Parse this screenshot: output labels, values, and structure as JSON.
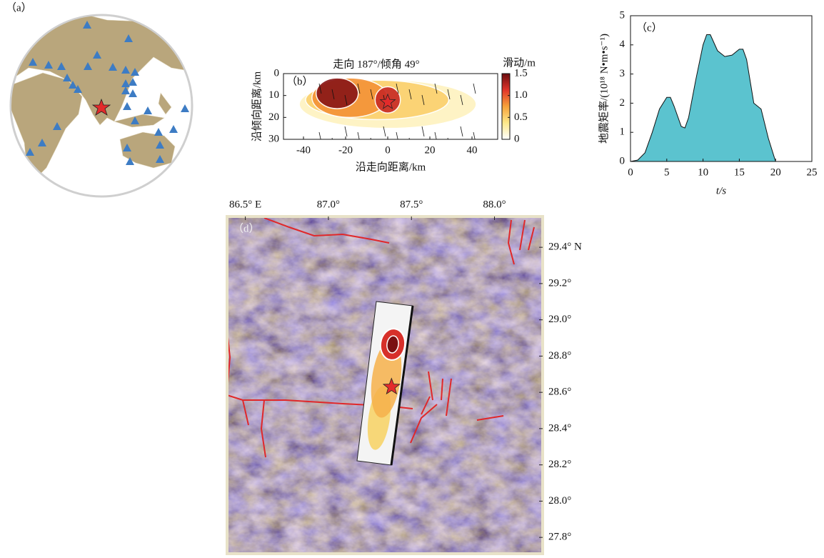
{
  "chart_data": [
    {
      "type": "globe",
      "label": "（a）"
    },
    {
      "type": "slip",
      "label": "（b）",
      "title": "走向 187°/倾角 49°",
      "xlabel": "沿走向距离/km",
      "ylabel": "沿倾向距离/km",
      "xlim": [
        -49.5,
        52.2
      ],
      "ylim": [
        30,
        0
      ],
      "xticks": [
        -40,
        -20,
        0,
        20,
        40
      ],
      "yticks": [
        0,
        10,
        20,
        30
      ],
      "colorbar": {
        "label": "滑动/m",
        "lim": [
          0,
          1.5
        ],
        "ticks": [
          0,
          0.5,
          {
            "value": 1,
            "label": "1.0"
          },
          1.5
        ]
      },
      "patches": [
        {
          "x": 0,
          "y": 14,
          "rx": 42,
          "ry": 11,
          "slip": 0.2
        },
        {
          "x": -5,
          "y": 12,
          "rx": 34,
          "ry": 9,
          "slip": 0.5
        },
        {
          "x": -18,
          "y": 11,
          "rx": 18,
          "ry": 9,
          "slip": 0.8
        },
        {
          "x": -24,
          "y": 9,
          "rx": 10,
          "ry": 7,
          "slip": 1.4
        },
        {
          "x": 0,
          "y": 12,
          "rx": 6,
          "ry": 6,
          "slip": 1.2
        }
      ],
      "hypocenter": [
        0,
        13
      ]
    },
    {
      "type": "area",
      "label": "（c）",
      "xlabel": "t/s",
      "ylabel": "地震矩率/(10¹⁸ N•m•s⁻¹)",
      "color": "#5bc3cf",
      "xlim": [
        0,
        25
      ],
      "ylim": [
        0,
        5
      ],
      "xticks": [
        0,
        5,
        10,
        15,
        20,
        25
      ],
      "yticks": [
        0,
        1,
        2,
        3,
        4,
        5
      ],
      "x": [
        0,
        1,
        2,
        3,
        4,
        5,
        5.5,
        6,
        7,
        7.5,
        8,
        9,
        10,
        10.5,
        11,
        12,
        13,
        14,
        15,
        15.5,
        16,
        17,
        18,
        19,
        20
      ],
      "values": [
        0,
        0.05,
        0.3,
        1.0,
        1.8,
        2.2,
        2.2,
        1.9,
        1.2,
        1.15,
        1.5,
        2.8,
        4.0,
        4.35,
        4.35,
        3.8,
        3.6,
        3.65,
        3.85,
        3.85,
        3.5,
        2.0,
        1.8,
        0.8,
        0
      ]
    },
    {
      "type": "map",
      "label": "（d）",
      "xlim": [
        86.39,
        88.29
      ],
      "ylim": [
        27.71,
        29.57
      ],
      "xticks": [
        {
          "value": 86.5,
          "label": "86.5° E"
        },
        {
          "value": 87.0,
          "label": "87.0°"
        },
        {
          "value": 87.5,
          "label": "87.5°"
        },
        {
          "value": 88.0,
          "label": "88.0°"
        }
      ],
      "yticks": [
        {
          "value": 29.4,
          "label": "29.4° N"
        },
        {
          "value": 29.2,
          "label": "29.2°"
        },
        {
          "value": 29.0,
          "label": "29.0°"
        },
        {
          "value": 28.8,
          "label": "28.8°"
        },
        {
          "value": 28.6,
          "label": "28.6°"
        },
        {
          "value": 28.4,
          "label": "28.4°"
        },
        {
          "value": 28.2,
          "label": "28.2°"
        },
        {
          "value": 28.0,
          "label": "28.0°"
        },
        {
          "value": 27.8,
          "label": "27.8°"
        }
      ],
      "epicenter": [
        87.38,
        28.63
      ]
    }
  ]
}
